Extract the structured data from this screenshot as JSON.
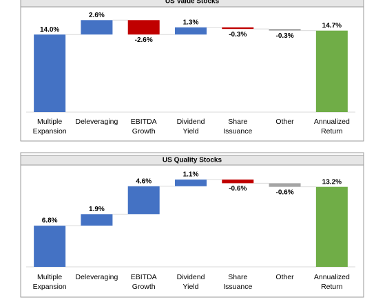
{
  "chart_data": [
    {
      "type": "waterfall",
      "title": "US Value Stocks",
      "categories": [
        "Multiple Expansion",
        "Deleveraging",
        "EBITDA Growth",
        "Dividend Yield",
        "Share Issuance",
        "Other",
        "Annualized Return"
      ],
      "values": [
        14.0,
        2.6,
        -2.6,
        1.3,
        -0.3,
        -0.3,
        14.7
      ],
      "value_labels": [
        "14.0%",
        "2.6%",
        "-2.6%",
        "1.3%",
        "-0.3%",
        "-0.3%",
        "14.7%"
      ],
      "colors": [
        "#4472c4",
        "#4472c4",
        "#c00000",
        "#4472c4",
        "#c00000",
        "#a5a5a5",
        "#70ad47"
      ],
      "ylim": [
        0,
        18
      ]
    },
    {
      "type": "waterfall",
      "title": "US Quality Stocks",
      "categories": [
        "Multiple Expansion",
        "Deleveraging",
        "EBITDA Growth",
        "Dividend Yield",
        "Share Issuance",
        "Other",
        "Annualized Return"
      ],
      "values": [
        6.8,
        1.9,
        4.6,
        1.1,
        -0.6,
        -0.6,
        13.2
      ],
      "value_labels": [
        "6.8%",
        "1.9%",
        "4.6%",
        "1.1%",
        "-0.6%",
        "-0.6%",
        "13.2%"
      ],
      "colors": [
        "#4472c4",
        "#4472c4",
        "#4472c4",
        "#4472c4",
        "#c00000",
        "#a5a5a5",
        "#70ad47"
      ],
      "ylim": [
        0,
        16
      ]
    }
  ]
}
